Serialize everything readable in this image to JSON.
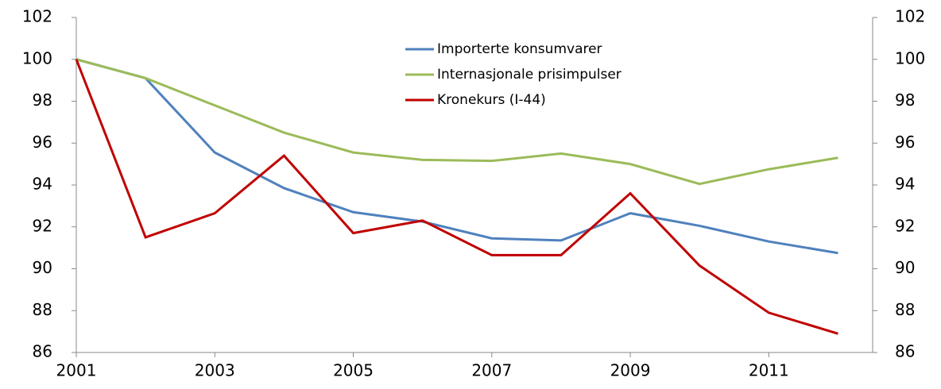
{
  "chart_data": {
    "type": "line",
    "x": [
      2001,
      2002,
      2003,
      2004,
      2005,
      2006,
      2007,
      2008,
      2009,
      2010,
      2011,
      2012
    ],
    "series": [
      {
        "name": "Importerte konsumvarer",
        "color": "#4f81bd",
        "values": [
          100,
          99.1,
          95.55,
          93.85,
          92.7,
          92.25,
          91.45,
          91.35,
          92.65,
          92.05,
          91.3,
          90.75
        ]
      },
      {
        "name": "Internasjonale prisimpulser",
        "color": "#9bbb59",
        "values": [
          100,
          99.1,
          97.8,
          96.5,
          95.55,
          95.2,
          95.15,
          95.5,
          95.0,
          94.05,
          94.75,
          95.3
        ]
      },
      {
        "name": "Kronekurs (I-44)",
        "color": "#c00000",
        "values": [
          100,
          91.5,
          92.65,
          95.4,
          91.7,
          92.3,
          90.65,
          90.65,
          93.6,
          90.15,
          87.9,
          86.9
        ]
      }
    ],
    "xlim": [
      2001,
      2012.5
    ],
    "xticks": [
      2001,
      2003,
      2005,
      2007,
      2009,
      2011
    ],
    "ylim": [
      86,
      102
    ],
    "yticks": [
      86,
      88,
      90,
      92,
      94,
      96,
      98,
      100,
      102
    ],
    "y2lim": [
      86,
      102
    ],
    "y2ticks": [
      86,
      88,
      90,
      92,
      94,
      96,
      98,
      100,
      102
    ],
    "legend": "top"
  }
}
